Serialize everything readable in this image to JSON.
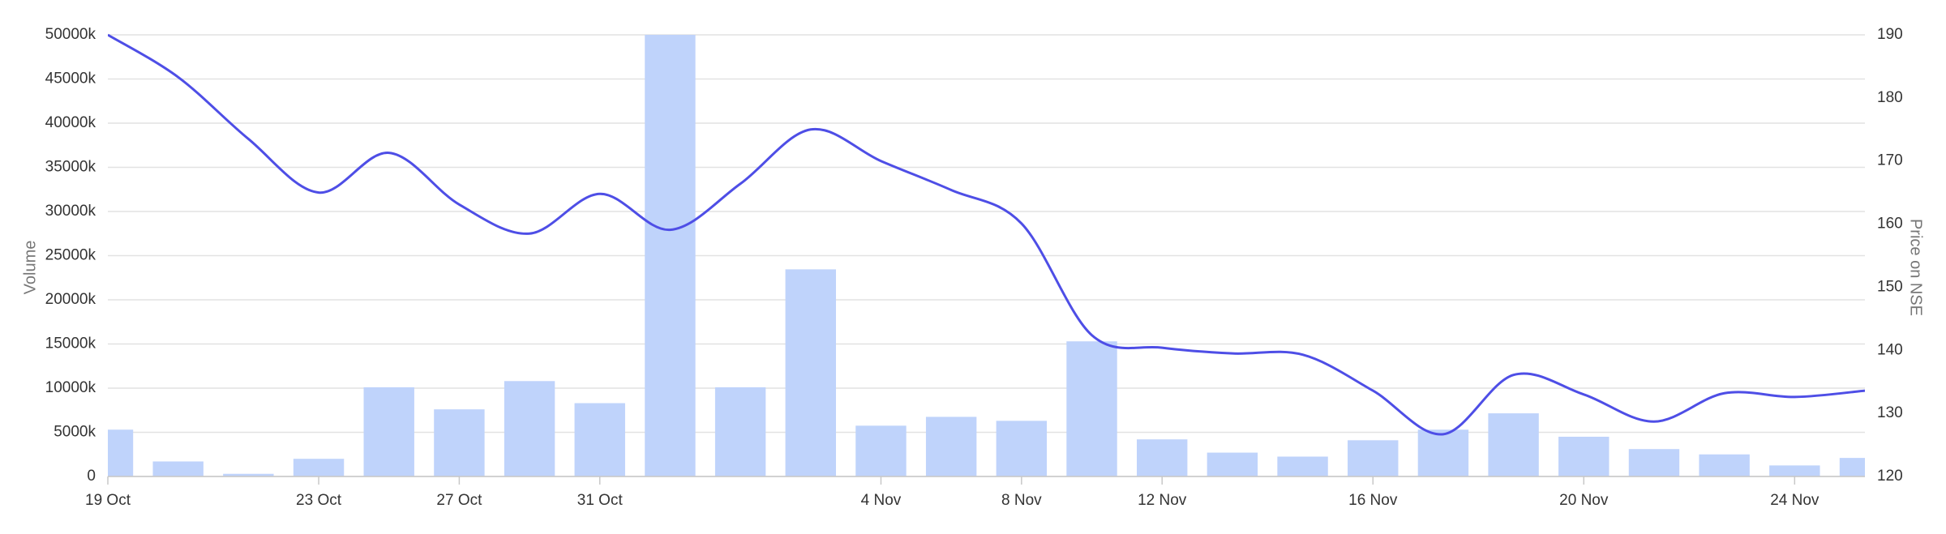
{
  "chart_data": {
    "type": "combo",
    "y_label": "Volume",
    "y2_label": "Price on NSE",
    "categories": [
      "19 Oct",
      null,
      null,
      "23 Oct",
      null,
      "27 Oct",
      null,
      "31 Oct",
      null,
      null,
      null,
      "4 Nov",
      null,
      "8 Nov",
      null,
      "12 Nov",
      null,
      null,
      "16 Nov",
      null,
      null,
      "20 Nov",
      null,
      null,
      "24 Nov",
      null
    ],
    "series": [
      {
        "type": "bar",
        "color": "#bfd3fb",
        "values": [
          5300,
          1700,
          300,
          2000,
          10100,
          7600,
          10800,
          8300,
          50000,
          10100,
          23450,
          5750,
          6750,
          6300,
          15300,
          4200,
          2700,
          2250,
          4100,
          5300,
          7150,
          4500,
          3100,
          2500,
          1250,
          2100
        ]
      },
      {
        "type": "line",
        "axis": "y2",
        "color": "#4e4ee6",
        "values": [
          190,
          183.3,
          173.5,
          165,
          171.3,
          163.1,
          158.5,
          164.8,
          159.1,
          166.4,
          175,
          170,
          165.4,
          160.1,
          142.4,
          140.4,
          139.5,
          139.3,
          133.6,
          126.7,
          136.1,
          133,
          128.7,
          133.2,
          132.6,
          133.6
        ]
      }
    ],
    "ylim": [
      0,
      50000
    ],
    "yticks": [
      0,
      {
        "value": 5000,
        "label": "5000k"
      },
      {
        "value": 10000,
        "label": "10000k"
      },
      {
        "value": 15000,
        "label": "15000k"
      },
      {
        "value": 20000,
        "label": "20000k"
      },
      {
        "value": 25000,
        "label": "25000k"
      },
      {
        "value": 30000,
        "label": "30000k"
      },
      {
        "value": 35000,
        "label": "35000k"
      },
      {
        "value": 40000,
        "label": "40000k"
      },
      {
        "value": 45000,
        "label": "45000k"
      },
      {
        "value": 50000,
        "label": "50000k"
      }
    ],
    "y2lim": [
      120,
      190
    ],
    "y2ticks": [
      120,
      130,
      140,
      150,
      160,
      170,
      180,
      190
    ],
    "grid": true
  }
}
